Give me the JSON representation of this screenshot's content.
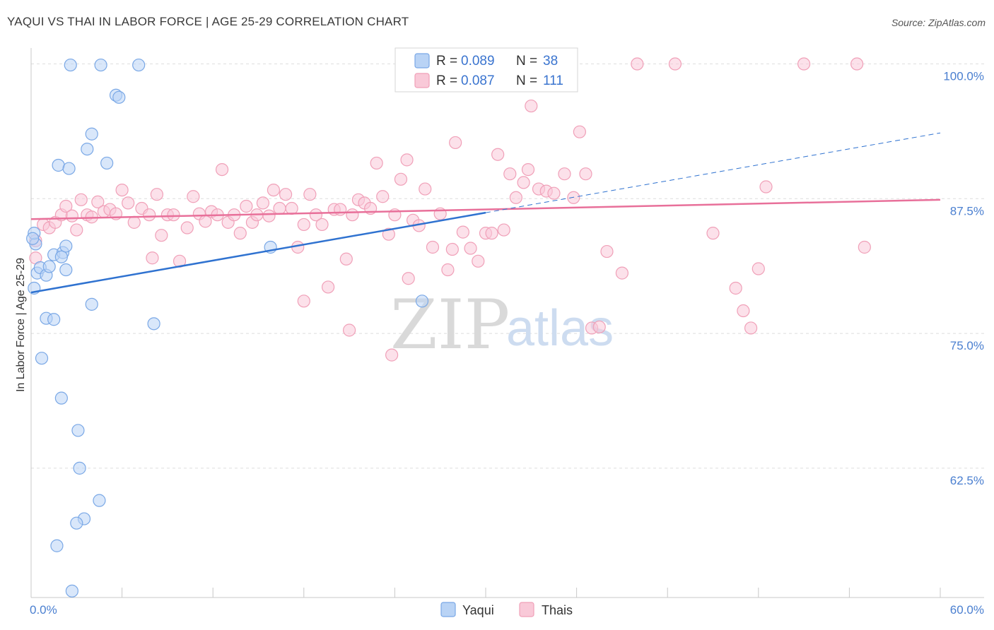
{
  "chart_data": {
    "type": "scatter",
    "title": "YAQUI VS THAI IN LABOR FORCE | AGE 25-29 CORRELATION CHART",
    "source": "Source: ZipAtlas.com",
    "xlabel": "",
    "ylabel": "In Labor Force | Age 25-29",
    "xlim": [
      0,
      60
    ],
    "ylim": [
      50.5,
      102
    ],
    "x_tick_labels": [
      "0.0%",
      "60.0%"
    ],
    "y_ticks": [
      {
        "value": 100,
        "label": "100.0%"
      },
      {
        "value": 87.5,
        "label": "87.5%"
      },
      {
        "value": 75,
        "label": "75.0%"
      },
      {
        "value": 62.5,
        "label": "62.5%"
      }
    ],
    "watermark": {
      "zip": "ZIP",
      "atlas": "atlas"
    },
    "legend": [
      {
        "name": "Yaqui",
        "r_label": "R = ",
        "r": "0.089",
        "n_label": "N = ",
        "n": "38"
      },
      {
        "name": "Thais",
        "r_label": "R = ",
        "r": "0.087",
        "n_label": "N = ",
        "n": "111"
      }
    ],
    "series": [
      {
        "name": "Yaqui",
        "color": "#7aa8e6",
        "fill": "#b9d3f5",
        "trend_color": "#2f72d0",
        "trend": {
          "x0": 0,
          "y0": 78.8,
          "x1": 30,
          "y1": 86.2,
          "dash_to_x": 60,
          "dash_to_y": 93.6
        },
        "points": [
          [
            2.6,
            99.9
          ],
          [
            4.6,
            99.9
          ],
          [
            7.1,
            99.9
          ],
          [
            5.6,
            97.1
          ],
          [
            5.8,
            96.9
          ],
          [
            4.0,
            93.5
          ],
          [
            3.7,
            92.1
          ],
          [
            1.8,
            90.6
          ],
          [
            2.5,
            90.3
          ],
          [
            5.0,
            90.8
          ],
          [
            0.3,
            83.3
          ],
          [
            0.2,
            84.3
          ],
          [
            0.4,
            80.6
          ],
          [
            0.6,
            81.1
          ],
          [
            1.0,
            80.4
          ],
          [
            1.2,
            81.2
          ],
          [
            1.5,
            82.3
          ],
          [
            2.1,
            82.5
          ],
          [
            2.0,
            82.1
          ],
          [
            2.3,
            80.9
          ],
          [
            1.0,
            76.4
          ],
          [
            1.5,
            76.3
          ],
          [
            2.3,
            83.1
          ],
          [
            4.0,
            77.7
          ],
          [
            8.1,
            75.9
          ],
          [
            0.7,
            72.7
          ],
          [
            0.2,
            79.2
          ],
          [
            15.8,
            83.0
          ],
          [
            25.8,
            78.0
          ],
          [
            2.0,
            69.0
          ],
          [
            3.1,
            66.0
          ],
          [
            3.2,
            62.5
          ],
          [
            4.5,
            59.5
          ],
          [
            3.5,
            57.8
          ],
          [
            3.0,
            57.4
          ],
          [
            1.7,
            55.3
          ],
          [
            2.7,
            51.1
          ],
          [
            0.1,
            83.8
          ]
        ]
      },
      {
        "name": "Thais",
        "color": "#f0a0b8",
        "fill": "#f9c9d8",
        "trend_color": "#e8709a",
        "trend": {
          "x0": 0,
          "y0": 85.6,
          "x1": 60,
          "y1": 87.4
        },
        "points": [
          [
            0.3,
            83.6
          ],
          [
            0.3,
            82.0
          ],
          [
            0.8,
            85.1
          ],
          [
            1.2,
            84.8
          ],
          [
            1.6,
            85.3
          ],
          [
            2.0,
            86.0
          ],
          [
            2.3,
            86.8
          ],
          [
            2.7,
            85.9
          ],
          [
            3.0,
            84.6
          ],
          [
            3.3,
            87.4
          ],
          [
            3.7,
            86.0
          ],
          [
            4.0,
            85.8
          ],
          [
            4.4,
            87.2
          ],
          [
            4.8,
            86.3
          ],
          [
            5.2,
            86.5
          ],
          [
            5.6,
            86.1
          ],
          [
            6.0,
            88.3
          ],
          [
            6.4,
            87.1
          ],
          [
            6.8,
            85.3
          ],
          [
            7.3,
            86.6
          ],
          [
            7.8,
            86.0
          ],
          [
            8.0,
            82.0
          ],
          [
            8.3,
            87.9
          ],
          [
            8.6,
            84.1
          ],
          [
            9.0,
            86.0
          ],
          [
            9.4,
            86.0
          ],
          [
            9.8,
            81.7
          ],
          [
            10.3,
            84.8
          ],
          [
            10.7,
            87.7
          ],
          [
            11.1,
            86.1
          ],
          [
            11.5,
            85.4
          ],
          [
            11.9,
            86.3
          ],
          [
            12.3,
            86.0
          ],
          [
            12.6,
            90.2
          ],
          [
            13.0,
            85.3
          ],
          [
            13.4,
            86.0
          ],
          [
            13.8,
            84.3
          ],
          [
            14.2,
            86.8
          ],
          [
            14.6,
            85.3
          ],
          [
            14.9,
            86.0
          ],
          [
            15.3,
            87.1
          ],
          [
            15.7,
            85.9
          ],
          [
            16.0,
            88.3
          ],
          [
            16.4,
            86.6
          ],
          [
            16.8,
            87.9
          ],
          [
            17.2,
            86.6
          ],
          [
            17.6,
            83.0
          ],
          [
            18.0,
            85.1
          ],
          [
            18.4,
            87.9
          ],
          [
            18.8,
            86.0
          ],
          [
            19.2,
            85.1
          ],
          [
            19.6,
            79.3
          ],
          [
            20.0,
            86.5
          ],
          [
            20.4,
            86.5
          ],
          [
            20.8,
            81.9
          ],
          [
            21.2,
            86.0
          ],
          [
            21.6,
            87.4
          ],
          [
            22.0,
            87.1
          ],
          [
            22.4,
            86.6
          ],
          [
            22.8,
            90.8
          ],
          [
            23.2,
            87.7
          ],
          [
            23.6,
            84.2
          ],
          [
            24.0,
            86.0
          ],
          [
            24.4,
            89.3
          ],
          [
            24.8,
            91.1
          ],
          [
            25.2,
            85.5
          ],
          [
            25.6,
            85.0
          ],
          [
            26.0,
            88.4
          ],
          [
            26.5,
            83.0
          ],
          [
            27.0,
            86.1
          ],
          [
            27.5,
            80.9
          ],
          [
            27.8,
            82.8
          ],
          [
            28.0,
            92.7
          ],
          [
            28.5,
            84.4
          ],
          [
            29.0,
            82.9
          ],
          [
            29.5,
            81.7
          ],
          [
            30.0,
            84.3
          ],
          [
            30.4,
            84.3
          ],
          [
            30.8,
            91.6
          ],
          [
            31.2,
            84.6
          ],
          [
            31.6,
            89.8
          ],
          [
            32.0,
            87.6
          ],
          [
            32.5,
            89.0
          ],
          [
            32.8,
            90.2
          ],
          [
            33.0,
            96.1
          ],
          [
            33.5,
            88.4
          ],
          [
            34.0,
            88.2
          ],
          [
            34.5,
            88.0
          ],
          [
            35.2,
            89.8
          ],
          [
            35.8,
            87.6
          ],
          [
            36.2,
            93.7
          ],
          [
            36.6,
            89.8
          ],
          [
            37.0,
            75.5
          ],
          [
            37.5,
            75.6
          ],
          [
            38.0,
            82.6
          ],
          [
            39.0,
            80.6
          ],
          [
            40.0,
            100.0
          ],
          [
            42.5,
            100.0
          ],
          [
            45.0,
            84.3
          ],
          [
            46.5,
            79.2
          ],
          [
            47.0,
            77.1
          ],
          [
            47.5,
            75.5
          ],
          [
            48.0,
            81.0
          ],
          [
            48.5,
            88.6
          ],
          [
            51.0,
            100.0
          ],
          [
            54.5,
            100.0
          ],
          [
            55.0,
            83.0
          ],
          [
            18.0,
            78.0
          ],
          [
            23.8,
            73.0
          ],
          [
            21.0,
            75.3
          ],
          [
            24.9,
            80.1
          ]
        ]
      }
    ]
  }
}
